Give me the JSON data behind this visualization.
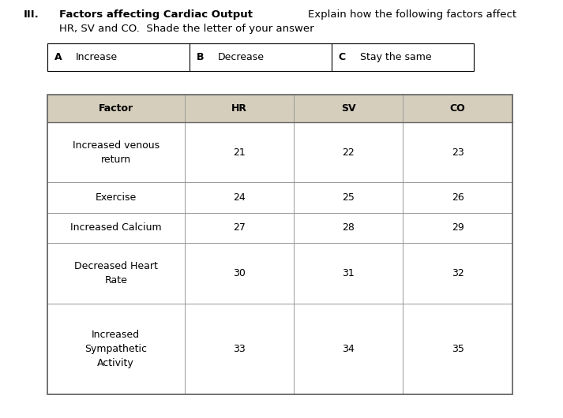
{
  "title_roman": "III.",
  "title_bold": "Factors affecting Cardiac Output",
  "title_right": "Explain how the following factors affect",
  "subtitle": "HR, SV and CO.  Shade the letter of your answer",
  "answer_options": [
    {
      "letter": "A",
      "text": "Increase"
    },
    {
      "letter": "B",
      "text": "Decrease"
    },
    {
      "letter": "C",
      "text": "Stay the same"
    }
  ],
  "header_bg": "#d5cebc",
  "header_text_color": "#000000",
  "table_border_color": "#999999",
  "outer_border_color": "#666666",
  "col_headers": [
    "Factor",
    "HR",
    "SV",
    "CO"
  ],
  "rows": [
    {
      "factor": "Increased venous\nreturn",
      "hr": "21",
      "sv": "22",
      "co": "23"
    },
    {
      "factor": "Exercise",
      "hr": "24",
      "sv": "25",
      "co": "26"
    },
    {
      "factor": "Increased Calcium",
      "hr": "27",
      "sv": "28",
      "co": "29"
    },
    {
      "factor": "Decreased Heart\nRate",
      "hr": "30",
      "sv": "31",
      "co": "32"
    },
    {
      "factor": "Increased\nSympathetic\nActivity",
      "hr": "33",
      "sv": "34",
      "co": "35"
    }
  ],
  "bg_color": "#ffffff",
  "font_size_title": 9.5,
  "font_size_table": 9,
  "font_size_header": 9
}
